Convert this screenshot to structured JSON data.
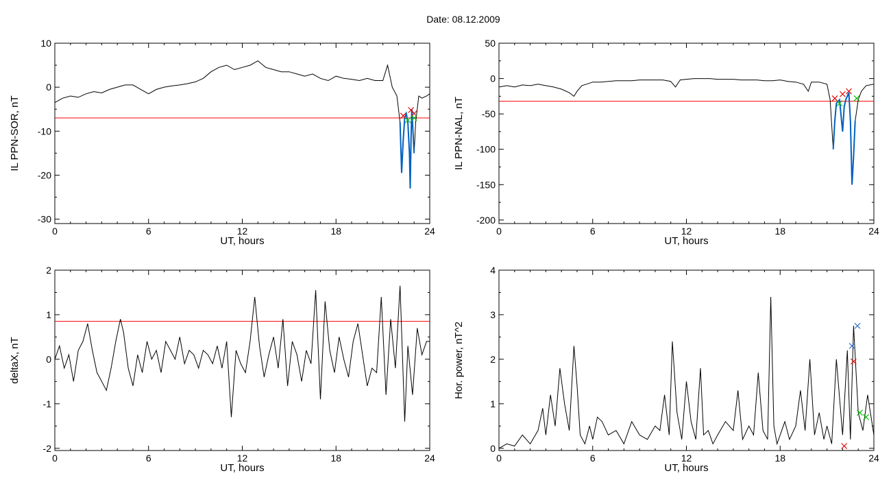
{
  "title": "Date:  08.12.2009",
  "colors": {
    "trace": "#000000",
    "threshold": "#ff0000",
    "highlight": "#0060c0",
    "marker_red": "#e00000",
    "marker_green": "#00c000",
    "marker_blue": "#3070d0"
  },
  "chart_data": [
    {
      "type": "line",
      "xlabel": "UT, hours",
      "ylabel": "IL PPN-SOR, nT",
      "xlim": [
        0,
        24
      ],
      "ylim": [
        -31,
        10
      ],
      "xticks": [
        0,
        6,
        12,
        18,
        24
      ],
      "yticks": [
        10,
        0,
        -10,
        -20,
        -30
      ],
      "x": [
        0,
        0.5,
        1,
        1.5,
        2,
        2.5,
        3,
        3.5,
        4,
        4.5,
        5,
        5.5,
        6,
        6.5,
        7,
        7.5,
        8,
        8.5,
        9,
        9.5,
        10,
        10.5,
        11,
        11.5,
        12,
        12.5,
        13,
        13.5,
        14,
        14.5,
        15,
        15.5,
        16,
        16.5,
        17,
        17.5,
        18,
        18.5,
        19,
        19.5,
        20,
        20.5,
        21,
        21.3,
        21.6,
        21.9,
        22.1,
        22.2,
        22.3,
        22.4,
        22.5,
        22.6,
        22.7,
        22.75,
        22.8,
        22.85,
        22.9,
        23,
        23.1,
        23.3,
        23.5,
        23.8,
        24
      ],
      "y": [
        -3.5,
        -2.5,
        -2,
        -2.3,
        -1.5,
        -1,
        -1.3,
        -0.5,
        0,
        0.5,
        0.5,
        -0.5,
        -1.5,
        -0.5,
        0,
        0.3,
        0.5,
        0.8,
        1.2,
        2,
        3.5,
        4.5,
        5,
        4,
        4.5,
        5,
        6,
        4.5,
        4,
        3.5,
        3.5,
        3,
        2.5,
        3,
        2,
        1.5,
        2.5,
        2,
        1.8,
        1.5,
        2,
        1.5,
        1.5,
        5,
        0,
        -2,
        -8,
        -19.5,
        -12,
        -7,
        -6,
        -8,
        -15,
        -23,
        -12,
        -5,
        -8,
        -15,
        -8,
        -2,
        -2.5,
        -2,
        -1.5
      ],
      "threshold": -7,
      "highlight_range": [
        22.1,
        23
      ],
      "markers": [
        {
          "x": 22.3,
          "y": -6.5,
          "color": "red"
        },
        {
          "x": 22.8,
          "y": -5.2,
          "color": "red"
        },
        {
          "x": 23.0,
          "y": -6.0,
          "color": "red"
        },
        {
          "x": 22.6,
          "y": -7.5,
          "color": "green"
        },
        {
          "x": 23.0,
          "y": -7.0,
          "color": "green"
        }
      ]
    },
    {
      "type": "line",
      "xlabel": "UT, hours",
      "ylabel": "IL PPN-NAL, nT",
      "xlim": [
        0,
        24
      ],
      "ylim": [
        -205,
        50
      ],
      "xticks": [
        0,
        6,
        12,
        18,
        24
      ],
      "yticks": [
        50,
        0,
        -50,
        -100,
        -150,
        -200
      ],
      "x": [
        0,
        0.5,
        1,
        1.5,
        2,
        2.5,
        3,
        3.5,
        4,
        4.5,
        4.8,
        5,
        5.3,
        5.6,
        6,
        6.5,
        7,
        7.5,
        8,
        8.5,
        9,
        9.5,
        10,
        10.5,
        11,
        11.3,
        11.6,
        12,
        12.5,
        13,
        13.5,
        14,
        14.5,
        15,
        15.5,
        16,
        16.5,
        17,
        17.5,
        18,
        18.5,
        19,
        19.5,
        19.8,
        20,
        20.5,
        21,
        21.2,
        21.4,
        21.5,
        21.6,
        21.8,
        22,
        22.1,
        22.2,
        22.4,
        22.5,
        22.6,
        22.7,
        22.8,
        23,
        23.2,
        23.5,
        24
      ],
      "y": [
        -12,
        -10,
        -12,
        -9,
        -10,
        -8,
        -10,
        -12,
        -15,
        -20,
        -25,
        -18,
        -10,
        -8,
        -5,
        -5,
        -4,
        -3,
        -3,
        -3,
        -2,
        -2,
        -2,
        -2,
        -4,
        -12,
        -2,
        -1,
        0,
        0,
        0,
        -1,
        -1,
        -1,
        -2,
        -2,
        -2,
        -3,
        -3,
        -2,
        -4,
        -5,
        -8,
        -18,
        -5,
        -5,
        -8,
        -30,
        -100,
        -60,
        -35,
        -30,
        -75,
        -40,
        -30,
        -20,
        -60,
        -150,
        -110,
        -60,
        -30,
        -18,
        -10,
        -8
      ],
      "threshold": -32,
      "highlight_range": [
        21.4,
        22.9
      ],
      "markers": [
        {
          "x": 21.5,
          "y": -28,
          "color": "red"
        },
        {
          "x": 22.0,
          "y": -22,
          "color": "red"
        },
        {
          "x": 22.4,
          "y": -18,
          "color": "red"
        },
        {
          "x": 21.8,
          "y": -35,
          "color": "green"
        },
        {
          "x": 22.9,
          "y": -28,
          "color": "green"
        }
      ]
    },
    {
      "type": "line",
      "xlabel": "UT, hours",
      "ylabel": "deltaX, nT",
      "xlim": [
        0,
        24
      ],
      "ylim": [
        -2.05,
        2
      ],
      "xticks": [
        0,
        6,
        12,
        18,
        24
      ],
      "yticks": [
        2,
        1,
        0,
        -1,
        -2
      ],
      "x": [
        0,
        0.3,
        0.6,
        0.9,
        1.2,
        1.5,
        1.8,
        2.1,
        2.4,
        2.7,
        3,
        3.3,
        3.6,
        3.9,
        4.2,
        4.4,
        4.7,
        5,
        5.3,
        5.6,
        5.9,
        6.2,
        6.5,
        6.8,
        7.1,
        7.4,
        7.7,
        8,
        8.3,
        8.6,
        8.9,
        9.2,
        9.5,
        9.8,
        10.1,
        10.4,
        10.7,
        11,
        11.3,
        11.6,
        11.9,
        12.2,
        12.5,
        12.8,
        13.1,
        13.4,
        13.7,
        14,
        14.3,
        14.6,
        14.9,
        15.2,
        15.5,
        15.8,
        16.1,
        16.4,
        16.7,
        17,
        17.3,
        17.6,
        17.9,
        18.2,
        18.5,
        18.8,
        19.1,
        19.4,
        19.7,
        20,
        20.3,
        20.6,
        20.9,
        21.2,
        21.5,
        21.8,
        22.1,
        22.4,
        22.6,
        22.9,
        23.2,
        23.5,
        23.8,
        24
      ],
      "y": [
        0,
        0.3,
        -0.2,
        0.1,
        -0.5,
        0.2,
        0.4,
        0.8,
        0.2,
        -0.3,
        -0.5,
        -0.7,
        -0.2,
        0.4,
        0.9,
        0.6,
        -0.2,
        -0.6,
        0.1,
        -0.3,
        0.4,
        0,
        0.2,
        -0.3,
        0.4,
        0.2,
        0,
        0.5,
        -0.1,
        0.2,
        0.1,
        -0.2,
        0.2,
        0.1,
        -0.1,
        0.3,
        -0.2,
        0.4,
        -1.3,
        0.2,
        -0.1,
        -0.3,
        0.4,
        1.4,
        0.3,
        -0.4,
        0.1,
        0.5,
        -0.2,
        0.9,
        -0.6,
        0.4,
        0.1,
        -0.5,
        0.2,
        -0.1,
        1.55,
        -0.9,
        1.3,
        0.2,
        -0.3,
        0.5,
        0,
        -0.4,
        0.4,
        0.8,
        0.1,
        -0.6,
        -0.2,
        -0.3,
        1.4,
        -0.8,
        0.9,
        -0.2,
        1.65,
        -1.4,
        0.3,
        -0.8,
        0.7,
        0.1,
        0.4,
        0.4
      ],
      "threshold": 0.85
    },
    {
      "type": "line",
      "xlabel": "UT, hours",
      "ylabel": "Hor. power, nT^2",
      "xlim": [
        0,
        24
      ],
      "ylim": [
        -0.05,
        4
      ],
      "xticks": [
        0,
        6,
        12,
        18,
        24
      ],
      "yticks": [
        4,
        3,
        2,
        1,
        0
      ],
      "x": [
        0,
        0.5,
        1,
        1.5,
        2,
        2.5,
        2.8,
        3,
        3.3,
        3.6,
        3.9,
        4.2,
        4.5,
        4.8,
        5,
        5.2,
        5.5,
        5.8,
        6,
        6.3,
        6.6,
        7,
        7.5,
        8,
        8.5,
        9,
        9.5,
        10,
        10.3,
        10.6,
        10.9,
        11.1,
        11.4,
        11.7,
        12,
        12.3,
        12.6,
        12.9,
        13.1,
        13.4,
        13.7,
        14,
        14.5,
        15,
        15.3,
        15.6,
        16,
        16.3,
        16.6,
        16.9,
        17.2,
        17.4,
        17.6,
        17.8,
        18,
        18.3,
        18.6,
        19,
        19.3,
        19.6,
        19.9,
        20.2,
        20.5,
        20.8,
        21,
        21.3,
        21.6,
        22,
        22.3,
        22.5,
        22.7,
        23,
        23.3,
        23.6,
        24
      ],
      "y": [
        0,
        0.1,
        0.05,
        0.3,
        0.1,
        0.4,
        0.9,
        0.3,
        1.2,
        0.5,
        1.8,
        1,
        0.4,
        2.3,
        1.4,
        0.3,
        0.1,
        0.5,
        0.2,
        0.7,
        0.6,
        0.3,
        0.4,
        0.1,
        0.6,
        0.3,
        0.2,
        0.5,
        0.4,
        1.2,
        0.3,
        2.4,
        0.8,
        0.2,
        1.5,
        0.6,
        0.2,
        1.8,
        0.3,
        0.4,
        0.1,
        0.3,
        0.6,
        0.4,
        1.3,
        0.2,
        0.5,
        0.3,
        1.7,
        0.4,
        0.2,
        3.4,
        0.5,
        0.1,
        0.3,
        0.6,
        0.2,
        0.5,
        1.3,
        0.4,
        2,
        0.3,
        0.8,
        0.2,
        0.5,
        0.1,
        2,
        0.3,
        2.2,
        0.2,
        2.75,
        0.8,
        0.4,
        1.2,
        0.3
      ],
      "markers": [
        {
          "x": 22.1,
          "y": 0.05,
          "color": "red"
        },
        {
          "x": 22.7,
          "y": 1.95,
          "color": "red"
        },
        {
          "x": 22.6,
          "y": 2.3,
          "color": "blue"
        },
        {
          "x": 22.95,
          "y": 2.75,
          "color": "blue"
        },
        {
          "x": 23.1,
          "y": 0.8,
          "color": "green"
        },
        {
          "x": 23.5,
          "y": 0.7,
          "color": "green"
        }
      ]
    }
  ]
}
